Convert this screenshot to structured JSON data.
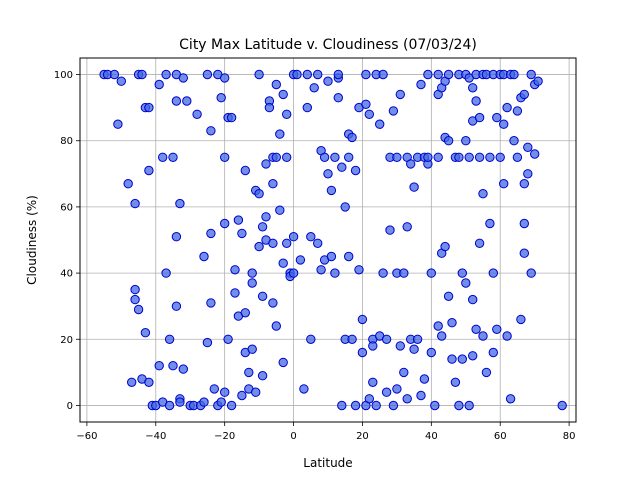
{
  "chart_data": {
    "type": "scatter",
    "title": "City Max Latitude v. Cloudiness (07/03/24)",
    "xlabel": "Latitude",
    "ylabel": "Cloudiness (%)",
    "xlim": [
      -62,
      82
    ],
    "ylim": [
      -5,
      105
    ],
    "xticks": [
      -60,
      -40,
      -20,
      0,
      20,
      40,
      60,
      80
    ],
    "yticks": [
      0,
      20,
      40,
      60,
      80,
      100
    ],
    "grid": true,
    "marker_fill": "#4169e1",
    "marker_edge": "#0000cd",
    "points": [
      [
        -55,
        100
      ],
      [
        -54,
        100
      ],
      [
        -52,
        100
      ],
      [
        -51,
        85
      ],
      [
        -50,
        98
      ],
      [
        -48,
        67
      ],
      [
        -47,
        7
      ],
      [
        -46,
        61
      ],
      [
        -46,
        35
      ],
      [
        -46,
        32
      ],
      [
        -45,
        29
      ],
      [
        -45,
        100
      ],
      [
        -44,
        100
      ],
      [
        -44,
        8
      ],
      [
        -43,
        22
      ],
      [
        -43,
        90
      ],
      [
        -42,
        90
      ],
      [
        -42,
        71
      ],
      [
        -42,
        7
      ],
      [
        -41,
        0
      ],
      [
        -40,
        0
      ],
      [
        -39,
        97
      ],
      [
        -39,
        12
      ],
      [
        -38,
        75
      ],
      [
        -38,
        1
      ],
      [
        -37,
        100
      ],
      [
        -37,
        40
      ],
      [
        -36,
        20
      ],
      [
        -36,
        0
      ],
      [
        -35,
        75
      ],
      [
        -35,
        12
      ],
      [
        -34,
        100
      ],
      [
        -34,
        92
      ],
      [
        -34,
        51
      ],
      [
        -34,
        30
      ],
      [
        -33,
        61
      ],
      [
        -33,
        2
      ],
      [
        -33,
        1
      ],
      [
        -32,
        99
      ],
      [
        -32,
        11
      ],
      [
        -31,
        92
      ],
      [
        -30,
        0
      ],
      [
        -29,
        0
      ],
      [
        -28,
        88
      ],
      [
        -27,
        0
      ],
      [
        -26,
        45
      ],
      [
        -26,
        1
      ],
      [
        -25,
        100
      ],
      [
        -25,
        19
      ],
      [
        -24,
        83
      ],
      [
        -24,
        52
      ],
      [
        -24,
        31
      ],
      [
        -23,
        5
      ],
      [
        -22,
        100
      ],
      [
        -22,
        0
      ],
      [
        -21,
        93
      ],
      [
        -21,
        1
      ],
      [
        -20,
        99
      ],
      [
        -20,
        75
      ],
      [
        -20,
        55
      ],
      [
        -20,
        4
      ],
      [
        -19,
        87
      ],
      [
        -19,
        20
      ],
      [
        -18,
        87
      ],
      [
        -18,
        0
      ],
      [
        -17,
        41
      ],
      [
        -17,
        34
      ],
      [
        -16,
        56
      ],
      [
        -16,
        27
      ],
      [
        -15,
        52
      ],
      [
        -15,
        3
      ],
      [
        -14,
        71
      ],
      [
        -14,
        28
      ],
      [
        -14,
        16
      ],
      [
        -13,
        10
      ],
      [
        -13,
        5
      ],
      [
        -12,
        40
      ],
      [
        -12,
        37
      ],
      [
        -12,
        17
      ],
      [
        -11,
        65
      ],
      [
        -11,
        4
      ],
      [
        -10,
        100
      ],
      [
        -10,
        64
      ],
      [
        -10,
        48
      ],
      [
        -9,
        54
      ],
      [
        -9,
        33
      ],
      [
        -9,
        9
      ],
      [
        -8,
        57
      ],
      [
        -8,
        50
      ],
      [
        -8,
        73
      ],
      [
        -7,
        92
      ],
      [
        -7,
        90
      ],
      [
        -6,
        75
      ],
      [
        -6,
        67
      ],
      [
        -6,
        49
      ],
      [
        -6,
        31
      ],
      [
        -5,
        97
      ],
      [
        -5,
        75
      ],
      [
        -5,
        24
      ],
      [
        -4,
        82
      ],
      [
        -4,
        59
      ],
      [
        -3,
        94
      ],
      [
        -3,
        43
      ],
      [
        -3,
        13
      ],
      [
        -2,
        88
      ],
      [
        -2,
        75
      ],
      [
        -2,
        49
      ],
      [
        -1,
        40
      ],
      [
        -1,
        39
      ],
      [
        0,
        100
      ],
      [
        0,
        51
      ],
      [
        0,
        40
      ],
      [
        1,
        100
      ],
      [
        2,
        44
      ],
      [
        3,
        5
      ],
      [
        4,
        100
      ],
      [
        4,
        90
      ],
      [
        5,
        51
      ],
      [
        5,
        20
      ],
      [
        6,
        96
      ],
      [
        7,
        100
      ],
      [
        7,
        49
      ],
      [
        8,
        77
      ],
      [
        8,
        41
      ],
      [
        9,
        75
      ],
      [
        9,
        44
      ],
      [
        10,
        98
      ],
      [
        10,
        70
      ],
      [
        11,
        45
      ],
      [
        11,
        65
      ],
      [
        12,
        75
      ],
      [
        12,
        40
      ],
      [
        13,
        99
      ],
      [
        13,
        100
      ],
      [
        13,
        93
      ],
      [
        14,
        72
      ],
      [
        14,
        0
      ],
      [
        15,
        60
      ],
      [
        15,
        20
      ],
      [
        16,
        82
      ],
      [
        16,
        75
      ],
      [
        16,
        45
      ],
      [
        17,
        81
      ],
      [
        17,
        20
      ],
      [
        18,
        71
      ],
      [
        18,
        0
      ],
      [
        19,
        90
      ],
      [
        19,
        41
      ],
      [
        20,
        26
      ],
      [
        20,
        16
      ],
      [
        21,
        100
      ],
      [
        21,
        91
      ],
      [
        21,
        0
      ],
      [
        22,
        88
      ],
      [
        22,
        2
      ],
      [
        23,
        20
      ],
      [
        23,
        18
      ],
      [
        23,
        7
      ],
      [
        24,
        100
      ],
      [
        24,
        0
      ],
      [
        25,
        85
      ],
      [
        25,
        21
      ],
      [
        26,
        100
      ],
      [
        26,
        40
      ],
      [
        27,
        20
      ],
      [
        27,
        4
      ],
      [
        28,
        75
      ],
      [
        28,
        53
      ],
      [
        29,
        89
      ],
      [
        29,
        0
      ],
      [
        30,
        75
      ],
      [
        30,
        40
      ],
      [
        30,
        5
      ],
      [
        31,
        94
      ],
      [
        31,
        18
      ],
      [
        32,
        40
      ],
      [
        32,
        10
      ],
      [
        33,
        75
      ],
      [
        33,
        54
      ],
      [
        33,
        2
      ],
      [
        34,
        73
      ],
      [
        34,
        20
      ],
      [
        35,
        66
      ],
      [
        35,
        17
      ],
      [
        36,
        75
      ],
      [
        36,
        20
      ],
      [
        37,
        97
      ],
      [
        37,
        3
      ],
      [
        38,
        75
      ],
      [
        38,
        8
      ],
      [
        39,
        100
      ],
      [
        39,
        73
      ],
      [
        39,
        75
      ],
      [
        40,
        40
      ],
      [
        40,
        16
      ],
      [
        41,
        0
      ],
      [
        42,
        100
      ],
      [
        42,
        94
      ],
      [
        42,
        75
      ],
      [
        42,
        24
      ],
      [
        43,
        96
      ],
      [
        43,
        46
      ],
      [
        43,
        21
      ],
      [
        44,
        98
      ],
      [
        44,
        81
      ],
      [
        44,
        48
      ],
      [
        45,
        100
      ],
      [
        45,
        80
      ],
      [
        45,
        33
      ],
      [
        46,
        25
      ],
      [
        46,
        14
      ],
      [
        47,
        7
      ],
      [
        47,
        75
      ],
      [
        48,
        100
      ],
      [
        48,
        75
      ],
      [
        48,
        0
      ],
      [
        49,
        40
      ],
      [
        49,
        14
      ],
      [
        50,
        100
      ],
      [
        50,
        80
      ],
      [
        50,
        37
      ],
      [
        51,
        99
      ],
      [
        51,
        75
      ],
      [
        51,
        0
      ],
      [
        52,
        96
      ],
      [
        52,
        86
      ],
      [
        52,
        32
      ],
      [
        52,
        15
      ],
      [
        53,
        100
      ],
      [
        53,
        92
      ],
      [
        53,
        23
      ],
      [
        54,
        87
      ],
      [
        54,
        75
      ],
      [
        54,
        49
      ],
      [
        55,
        100
      ],
      [
        55,
        64
      ],
      [
        55,
        21
      ],
      [
        56,
        100
      ],
      [
        56,
        10
      ],
      [
        57,
        75
      ],
      [
        57,
        55
      ],
      [
        58,
        100
      ],
      [
        58,
        40
      ],
      [
        58,
        16
      ],
      [
        59,
        87
      ],
      [
        59,
        23
      ],
      [
        60,
        100
      ],
      [
        60,
        75
      ],
      [
        61,
        100
      ],
      [
        61,
        85
      ],
      [
        61,
        67
      ],
      [
        62,
        90
      ],
      [
        62,
        21
      ],
      [
        63,
        100
      ],
      [
        63,
        2
      ],
      [
        64,
        100
      ],
      [
        64,
        80
      ],
      [
        65,
        89
      ],
      [
        65,
        75
      ],
      [
        66,
        93
      ],
      [
        66,
        26
      ],
      [
        67,
        94
      ],
      [
        67,
        67
      ],
      [
        67,
        55
      ],
      [
        67,
        46
      ],
      [
        68,
        78
      ],
      [
        68,
        70
      ],
      [
        69,
        100
      ],
      [
        69,
        40
      ],
      [
        70,
        97
      ],
      [
        70,
        76
      ],
      [
        71,
        98
      ],
      [
        78,
        0
      ]
    ]
  }
}
